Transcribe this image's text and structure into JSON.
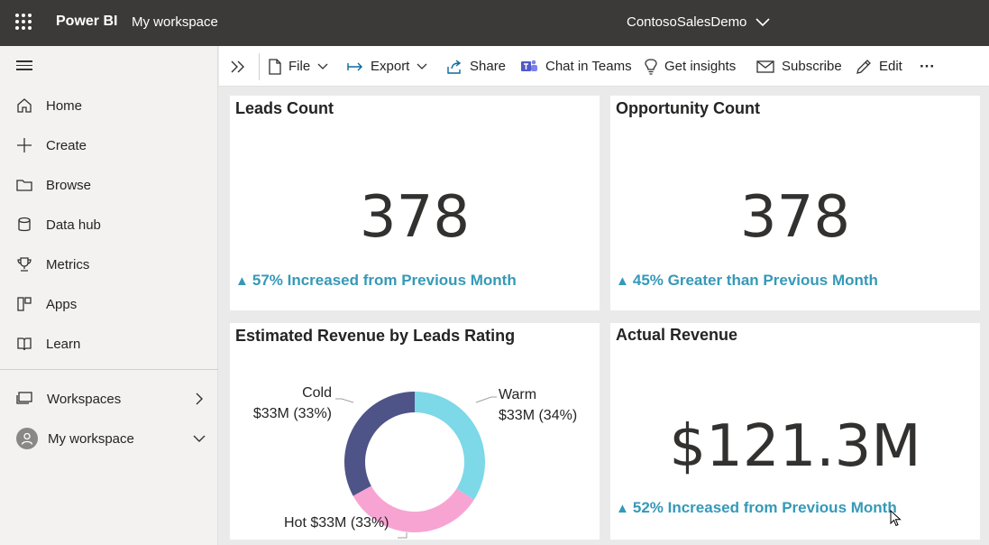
{
  "topbar": {
    "brand": "Power BI",
    "workspace": "My workspace",
    "report_name": "ContosoSalesDemo",
    "icons": [
      "app-launcher-icon",
      "chevron-down-icon"
    ]
  },
  "sidebar": {
    "items": [
      {
        "label": "Home",
        "icon": "home-icon"
      },
      {
        "label": "Create",
        "icon": "plus-icon"
      },
      {
        "label": "Browse",
        "icon": "folder-icon"
      },
      {
        "label": "Data hub",
        "icon": "database-icon"
      },
      {
        "label": "Metrics",
        "icon": "trophy-icon"
      },
      {
        "label": "Apps",
        "icon": "apps-icon"
      },
      {
        "label": "Learn",
        "icon": "book-icon"
      }
    ],
    "workspaces_label": "Workspaces",
    "my_workspace_label": "My workspace"
  },
  "actionbar": {
    "file": "File",
    "export": "Export",
    "share": "Share",
    "chat": "Chat in Teams",
    "insights": "Get insights",
    "subscribe": "Subscribe",
    "edit": "Edit",
    "more": "···"
  },
  "tiles": {
    "leads": {
      "title": "Leads Count",
      "value": "378",
      "trend": "57% Increased from Previous Month"
    },
    "opportunity": {
      "title": "Opportunity Count",
      "value": "378",
      "trend": "45% Greater than Previous Month"
    },
    "revenue_rating": {
      "title": "Estimated Revenue by Leads Rating"
    },
    "actual": {
      "title": "Actual Revenue",
      "value": "$121.3M",
      "trend": "52% Increased from Previous Month"
    },
    "trend_arrow": "▲"
  },
  "chart_data": {
    "type": "pie",
    "title": "Estimated Revenue by Leads Rating",
    "donut": true,
    "slices": [
      {
        "name": "Warm",
        "value_label": "$33M (34%)",
        "percent": 34,
        "color": "#7dd8e8"
      },
      {
        "name": "Hot",
        "value_label": "$33M (33%)",
        "percent": 33,
        "color": "#f7a4d3"
      },
      {
        "name": "Cold",
        "value_label": "$33M (33%)",
        "percent": 33,
        "color": "#4e5487"
      }
    ]
  },
  "colors": {
    "topbar": "#3b3a39",
    "trend": "#3599b8",
    "sidebar": "#f3f2f1"
  }
}
